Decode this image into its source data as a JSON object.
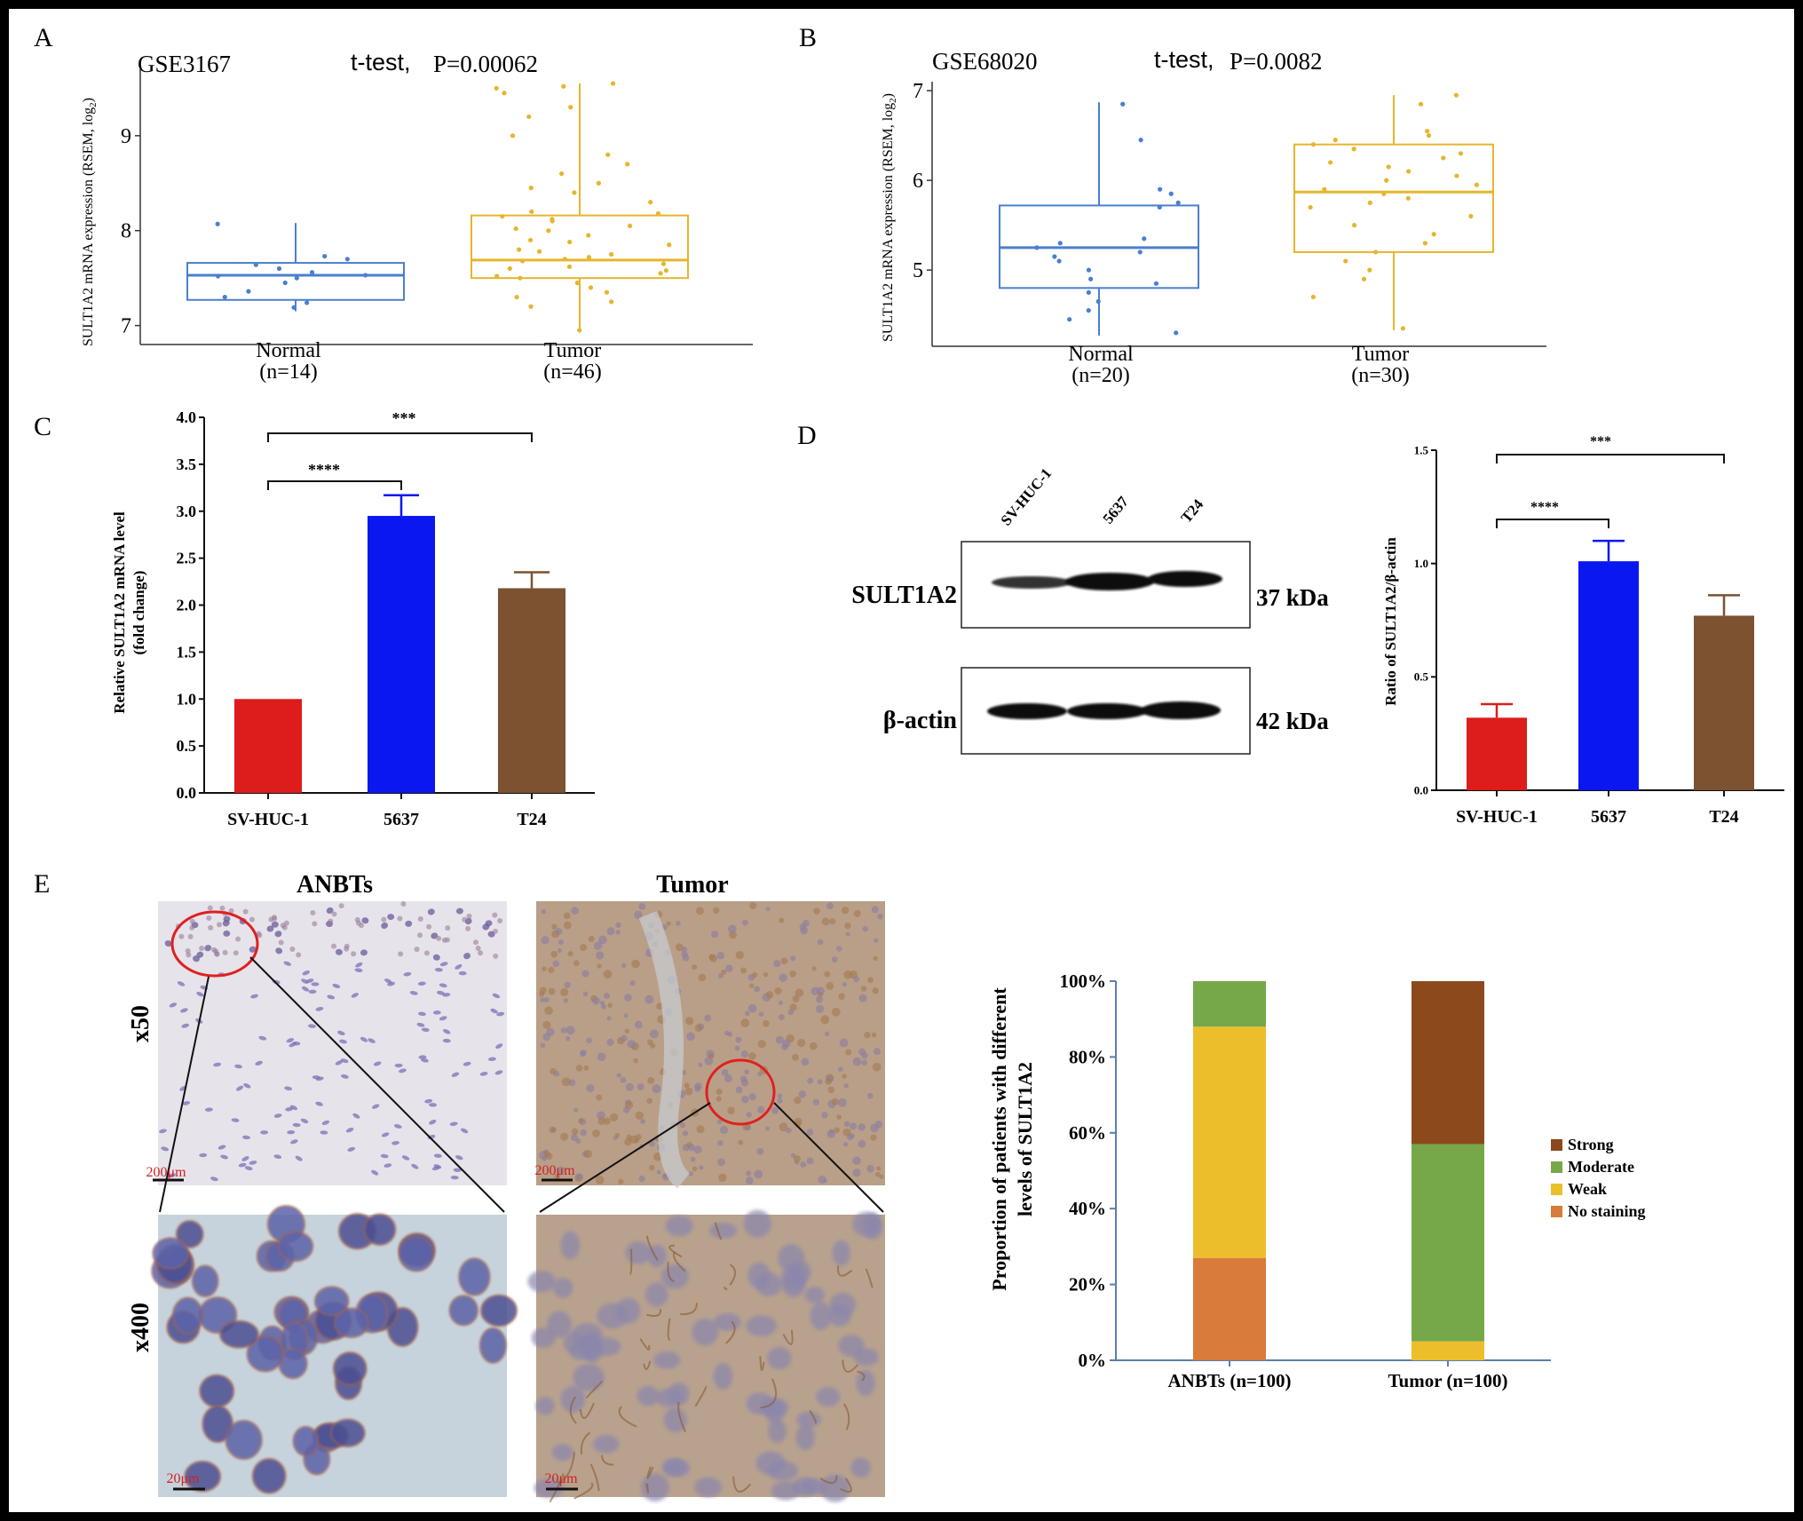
{
  "panels": {
    "A": {
      "label": "A",
      "dataset": "GSE3167",
      "test": "t-test,",
      "pvalue": "P=0.00062",
      "ylabel_prefix": "SULT1A2 mRNA expression (RSEM, log",
      "ylabel_sub": "2",
      "ylabel_suffix": ")",
      "groups": [
        {
          "name": "Normal",
          "n": "(n=14)"
        },
        {
          "name": "Tumor",
          "n": "(n=46)"
        }
      ]
    },
    "B": {
      "label": "B",
      "dataset": "GSE68020",
      "test": "t-test,",
      "pvalue": "P=0.0082",
      "ylabel_prefix": "SULT1A2 mRNA expression (RSEM, log",
      "ylabel_sub": "2",
      "ylabel_suffix": ")",
      "groups": [
        {
          "name": "Normal",
          "n": "(n=20)"
        },
        {
          "name": "Tumor",
          "n": "(n=30)"
        }
      ]
    },
    "C": {
      "label": "C",
      "ylabel1": "Relative SULT1A2 mRNA level",
      "ylabel2": "(fold change)",
      "sig1": "****",
      "sig2": "***"
    },
    "D": {
      "label": "D",
      "lanes": [
        "SV-HUC-1",
        "5637",
        "T24"
      ],
      "bands": [
        {
          "name": "SULT1A2",
          "size": "37 kDa"
        },
        {
          "name": "β-actin",
          "size": "42 kDa"
        }
      ],
      "ylabel": "Ratio of SULT1A2/β-actin",
      "sig1": "****",
      "sig2": "***"
    },
    "E": {
      "label": "E",
      "col_titles": [
        "ANBTs",
        "Tumor"
      ],
      "row_titles": [
        "x50",
        "x400"
      ],
      "scale_bars": [
        "200μm",
        "200μm",
        "20μm",
        "20μm"
      ],
      "ylabel1": "Proportion of patients with different",
      "ylabel2": "levels of SULT1A2"
    }
  },
  "chart_data": [
    {
      "id": "A",
      "type": "box",
      "title": "GSE3167",
      "ylim": [
        6.8,
        9.7
      ],
      "yticks": [
        7,
        8,
        9
      ],
      "categories": [
        "Normal",
        "Tumor"
      ],
      "boxes": [
        {
          "name": "Normal",
          "min": 7.15,
          "q1": 7.27,
          "median": 7.53,
          "q3": 7.66,
          "max": 8.08,
          "color": "#4a7fcf",
          "points": [
            7.19,
            7.24,
            7.3,
            7.36,
            7.45,
            7.5,
            7.52,
            7.53,
            7.56,
            7.6,
            7.64,
            7.7,
            7.73,
            8.07
          ]
        },
        {
          "name": "Tumor",
          "min": 6.93,
          "q1": 7.5,
          "median": 7.69,
          "q3": 8.16,
          "max": 9.55,
          "color": "#e6b52d",
          "points": [
            6.95,
            7.2,
            7.25,
            7.3,
            7.4,
            7.45,
            7.5,
            7.52,
            7.55,
            7.58,
            7.6,
            7.62,
            7.65,
            7.68,
            7.7,
            7.72,
            7.75,
            7.78,
            7.8,
            7.85,
            7.88,
            7.9,
            7.95,
            8.0,
            8.02,
            8.05,
            8.1,
            8.12,
            8.15,
            8.18,
            8.2,
            8.3,
            8.4,
            8.45,
            8.5,
            8.6,
            8.7,
            8.8,
            9.0,
            9.2,
            9.3,
            9.45,
            9.5,
            9.52,
            9.55,
            7.35
          ]
        }
      ]
    },
    {
      "id": "B",
      "type": "box",
      "title": "GSE68020",
      "ylim": [
        4.15,
        7.1
      ],
      "yticks": [
        5,
        6,
        7
      ],
      "categories": [
        "Normal",
        "Tumor"
      ],
      "boxes": [
        {
          "name": "Normal",
          "min": 4.27,
          "q1": 4.8,
          "median": 5.25,
          "q3": 5.72,
          "max": 6.87,
          "color": "#4a7fcf",
          "points": [
            4.3,
            4.45,
            4.55,
            4.65,
            4.75,
            4.85,
            4.9,
            5.0,
            5.1,
            5.15,
            5.2,
            5.25,
            5.3,
            5.35,
            5.7,
            5.75,
            5.85,
            5.9,
            6.45,
            6.85
          ]
        },
        {
          "name": "Tumor",
          "min": 4.33,
          "q1": 5.2,
          "median": 5.87,
          "q3": 6.4,
          "max": 6.95,
          "color": "#e6b52d",
          "points": [
            4.35,
            4.7,
            4.9,
            5.0,
            5.1,
            5.2,
            5.3,
            5.4,
            5.5,
            5.6,
            5.7,
            5.75,
            5.8,
            5.85,
            5.9,
            5.95,
            6.0,
            6.05,
            6.1,
            6.15,
            6.2,
            6.25,
            6.3,
            6.35,
            6.4,
            6.45,
            6.5,
            6.55,
            6.85,
            6.95
          ]
        }
      ]
    },
    {
      "id": "C",
      "type": "bar",
      "categories": [
        "SV-HUC-1",
        "5637",
        "T24"
      ],
      "values": [
        1.0,
        2.95,
        2.18
      ],
      "errors": [
        0,
        0.22,
        0.17
      ],
      "colors": [
        "#dd1c1c",
        "#0a17f0",
        "#7c5231"
      ],
      "ylim": [
        0,
        4.0
      ],
      "yticks": [
        "0.0",
        "0.5",
        "1.0",
        "1.5",
        "2.0",
        "2.5",
        "3.0",
        "3.5",
        "4.0"
      ],
      "ylabel": "Relative SULT1A2 mRNA level (fold change)"
    },
    {
      "id": "D",
      "type": "bar",
      "categories": [
        "SV-HUC-1",
        "5637",
        "T24"
      ],
      "values": [
        0.32,
        1.01,
        0.77
      ],
      "errors": [
        0.06,
        0.09,
        0.09
      ],
      "colors": [
        "#dd1c1c",
        "#0a17f0",
        "#7c5231"
      ],
      "ylim": [
        0,
        1.5
      ],
      "yticks": [
        "0.0",
        "0.5",
        "1.0",
        "1.5"
      ],
      "ylabel": "Ratio of SULT1A2/β-actin"
    },
    {
      "id": "E",
      "type": "stacked-bar",
      "categories": [
        "ANBTs (n=100)",
        "Tumor (n=100)"
      ],
      "yticks": [
        "0%",
        "20%",
        "40%",
        "60%",
        "80%",
        "100%"
      ],
      "ylim": [
        0,
        100
      ],
      "legend_position": "right",
      "series": [
        {
          "name": "No staining",
          "color": "#d97b3a",
          "values": [
            27,
            0
          ]
        },
        {
          "name": "Weak",
          "color": "#ecbe2b",
          "values": [
            61,
            5
          ]
        },
        {
          "name": "Moderate",
          "color": "#76a84a",
          "values": [
            12,
            52
          ]
        },
        {
          "name": "Strong",
          "color": "#8c4a1c",
          "values": [
            0,
            43
          ]
        }
      ],
      "legend_order": [
        "Strong",
        "Moderate",
        "Weak",
        "No staining"
      ]
    }
  ]
}
